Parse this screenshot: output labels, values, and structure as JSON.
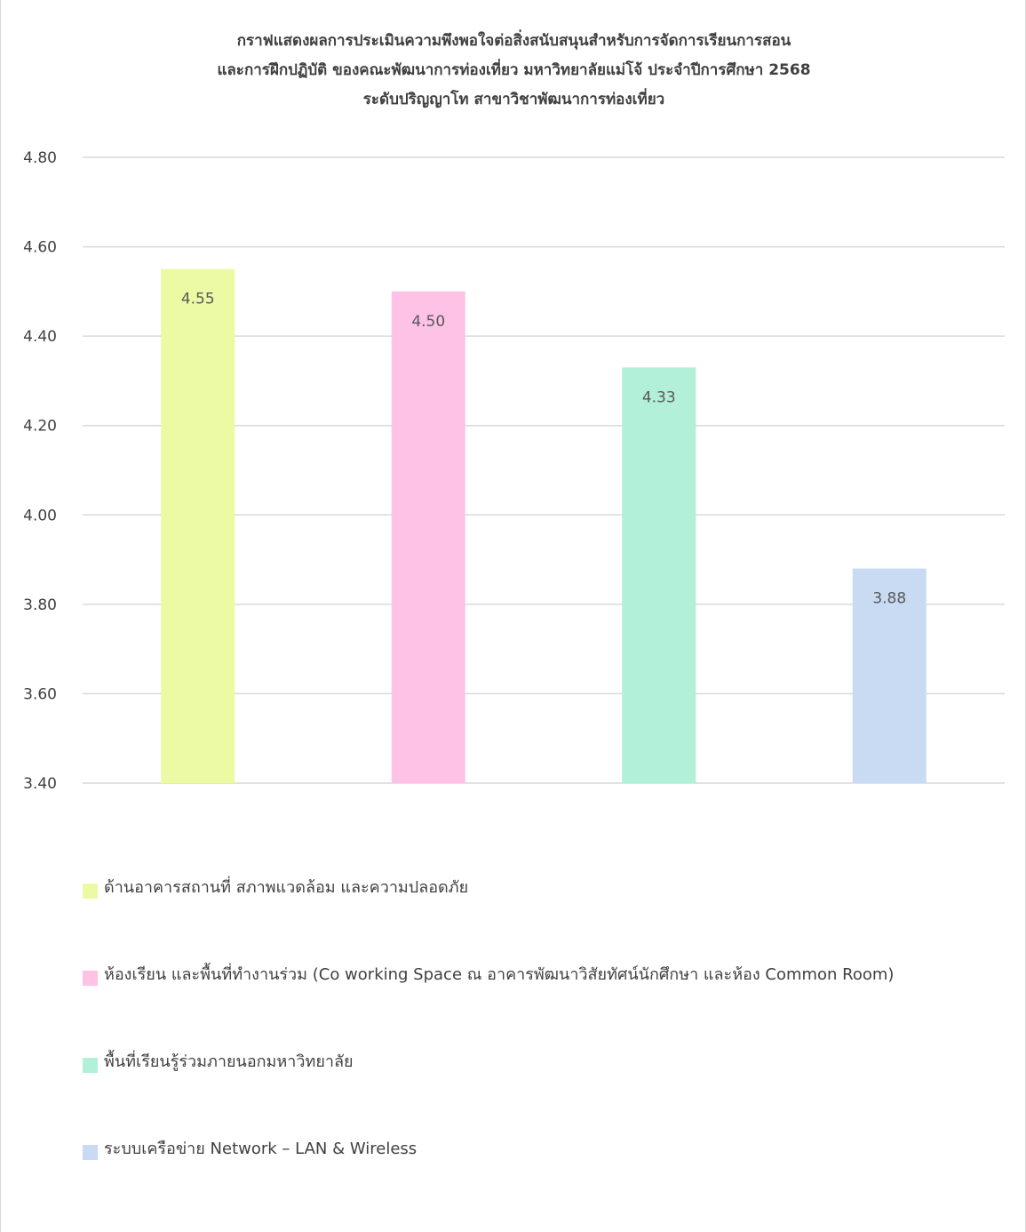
{
  "chart_data": {
    "type": "bar",
    "title_lines": [
      "กราฟแสดงผลการประเมินความพึงพอใจต่อสิ่งสนับสนุนสำหรับการจัดการเรียนการสอน",
      "และการฝึกปฏิบัติ ของคณะพัฒนาการท่องเที่ยว มหาวิทยาลัยแม่โจ้ ประจำปีการศึกษา 2568",
      "ระดับปริญญาโท สาขาวิชาพัฒนาการท่องเที่ยว"
    ],
    "xlabel": "",
    "ylabel": "",
    "ylim": [
      3.4,
      4.8
    ],
    "yticks": [
      "4.80",
      "4.60",
      "4.40",
      "4.20",
      "4.00",
      "3.80",
      "3.60",
      "3.40"
    ],
    "grid": true,
    "legend_position": "bottom",
    "series": [
      {
        "name": "ด้านอาคารสถานที่ สภาพแวดล้อม และความปลอดภัย",
        "value": 4.55,
        "label": "4.55",
        "color": "#ecfaa3"
      },
      {
        "name": "ห้องเรียน และพื้นที่ทำงานร่วม (Co working Space ณ อาคารพัฒนาวิสัยทัศน์นักศึกษา และห้อง Common Room)",
        "value": 4.5,
        "label": "4.50",
        "color": "#fdc2e6"
      },
      {
        "name": "พื้นที่เรียนรู้ร่วมภายนอกมหาวิทยาลัย",
        "value": 4.33,
        "label": "4.33",
        "color": "#b3f0d9"
      },
      {
        "name": "ระบบเครือข่าย Network – LAN & Wireless",
        "value": 3.88,
        "label": "3.88",
        "color": "#c9daf3"
      }
    ],
    "colors": {
      "gridline": "#d9d9d9",
      "text": "#404040",
      "data_label": "#595959"
    }
  }
}
